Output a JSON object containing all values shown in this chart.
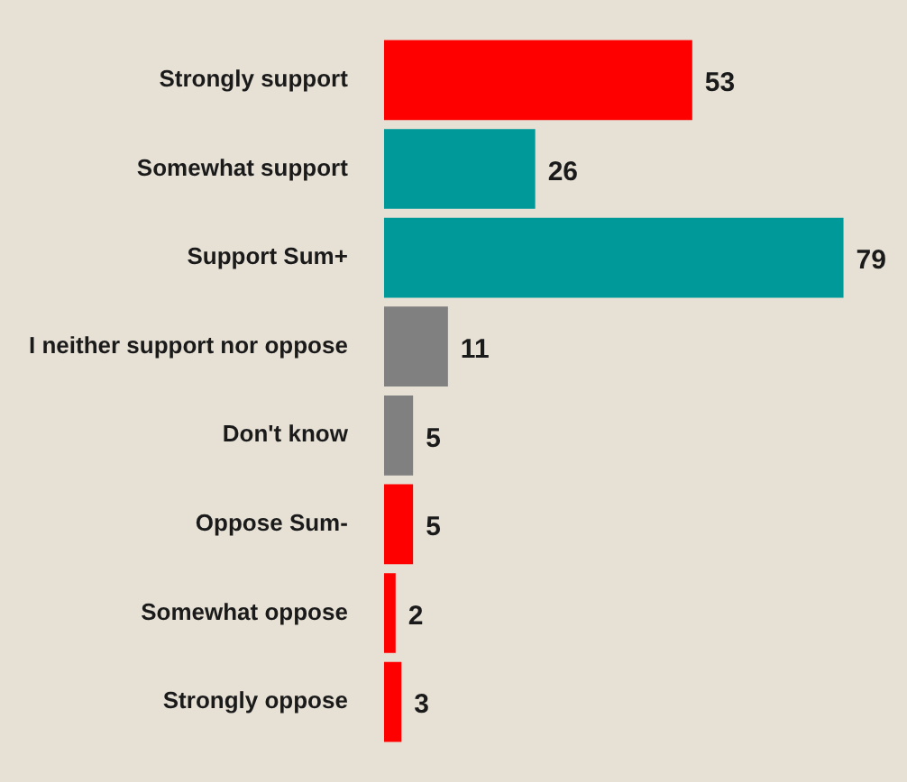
{
  "chart_data": {
    "type": "bar",
    "orientation": "horizontal",
    "categories": [
      "Strongly support",
      "Somewhat support",
      "Support Sum+",
      "I neither support nor oppose",
      "Don't know",
      "Oppose Sum-",
      "Somewhat oppose",
      "Strongly oppose"
    ],
    "values": [
      53,
      26,
      79,
      11,
      5,
      5,
      2,
      3
    ],
    "colors": [
      "#ff0000",
      "#009999",
      "#009999",
      "#808080",
      "#808080",
      "#ff0000",
      "#ff0000",
      "#ff0000"
    ],
    "data_labels": true,
    "grid": false,
    "legend": false
  }
}
